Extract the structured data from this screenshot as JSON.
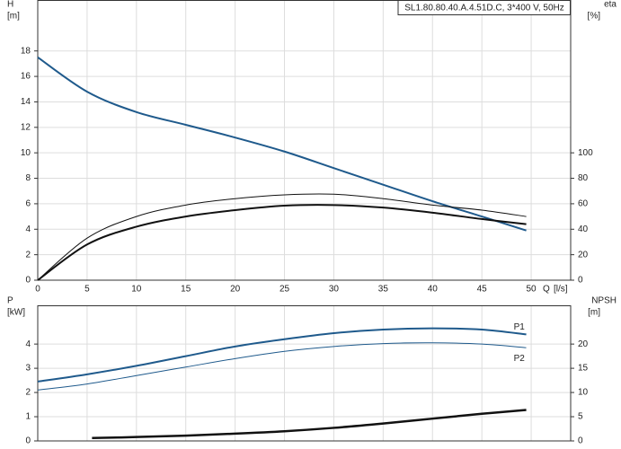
{
  "chart_data": [
    {
      "type": "line",
      "title": "SL1.80.80.40.A.4.51D.C, 3*400 V, 50Hz",
      "xlabel": "Q",
      "xunit": "[l/s]",
      "ylabel": "H",
      "yunit": "[m]",
      "y2label": "eta",
      "y2unit": "[%]",
      "xlim": [
        0,
        54
      ],
      "xticks": [
        0,
        5,
        10,
        15,
        20,
        25,
        30,
        35,
        40,
        45,
        50
      ],
      "ylim": [
        0,
        22
      ],
      "yticks": [
        0,
        2,
        4,
        6,
        8,
        10,
        12,
        14,
        16,
        18
      ],
      "y2lim": [
        0,
        220
      ],
      "y2ticks": [
        0,
        20,
        40,
        60,
        80,
        100
      ],
      "grid": true,
      "series": [
        {
          "color": "#1f5a8c",
          "width": 2,
          "x": [
            0,
            5,
            10,
            15,
            20,
            25,
            30,
            35,
            40,
            45,
            49.5
          ],
          "values": [
            17.5,
            14.8,
            13.2,
            12.2,
            11.2,
            10.1,
            8.8,
            7.5,
            6.2,
            5.0,
            3.9
          ]
        },
        {
          "color": "#111111",
          "width": 1,
          "axis": "y2",
          "x": [
            0,
            5,
            10,
            15,
            20,
            25,
            30,
            35,
            40,
            45,
            49.5
          ],
          "values": [
            0,
            33,
            50,
            59,
            64,
            67,
            67.5,
            64,
            59,
            55,
            50
          ]
        },
        {
          "color": "#111111",
          "width": 2,
          "axis": "y2",
          "x": [
            0,
            5,
            10,
            15,
            20,
            25,
            30,
            35,
            40,
            45,
            49.5
          ],
          "values": [
            0,
            28,
            42,
            50,
            55,
            58.5,
            59,
            57,
            53,
            48,
            44
          ]
        }
      ]
    },
    {
      "type": "line",
      "ylabel": "P",
      "yunit": "[kW]",
      "y2label": "NPSH",
      "y2unit": "[m]",
      "xlim": [
        0,
        54
      ],
      "xticks": [
        0,
        5,
        10,
        15,
        20,
        25,
        30,
        35,
        40,
        45,
        50
      ],
      "ylim": [
        0,
        5.6
      ],
      "yticks": [
        0,
        1,
        2,
        3,
        4
      ],
      "y2lim": [
        0,
        28
      ],
      "y2ticks": [
        0,
        5,
        10,
        15,
        20
      ],
      "grid": true,
      "series": [
        {
          "name": "P1",
          "color": "#1f5a8c",
          "width": 2,
          "x": [
            0,
            5,
            10,
            15,
            20,
            25,
            30,
            35,
            40,
            45,
            49.5
          ],
          "values": [
            2.45,
            2.75,
            3.1,
            3.5,
            3.9,
            4.2,
            4.45,
            4.6,
            4.65,
            4.6,
            4.4
          ]
        },
        {
          "name": "P2",
          "color": "#1f5a8c",
          "width": 1,
          "x": [
            0,
            5,
            10,
            15,
            20,
            25,
            30,
            35,
            40,
            45,
            49.5
          ],
          "values": [
            2.1,
            2.35,
            2.7,
            3.05,
            3.4,
            3.7,
            3.9,
            4.02,
            4.05,
            4.0,
            3.85
          ]
        },
        {
          "color": "#111111",
          "width": 2.5,
          "axis": "y2",
          "x": [
            5.5,
            10,
            15,
            20,
            25,
            30,
            35,
            40,
            45,
            49.5
          ],
          "values": [
            0.6,
            0.8,
            1.1,
            1.5,
            2.0,
            2.7,
            3.6,
            4.6,
            5.6,
            6.4
          ]
        }
      ]
    }
  ]
}
